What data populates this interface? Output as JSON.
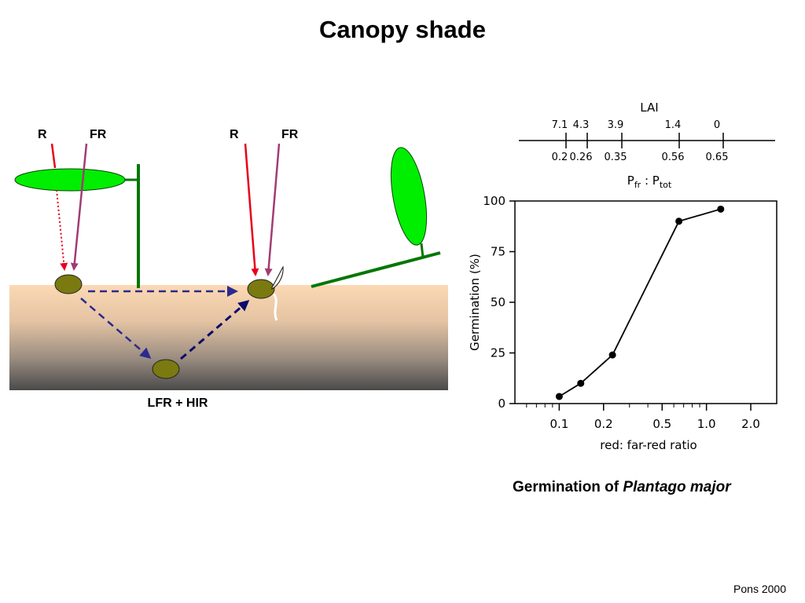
{
  "slide": {
    "title": "Canopy shade",
    "credit": "Pons 2000"
  },
  "diagram": {
    "left_labels": {
      "r": "R",
      "fr": "FR"
    },
    "right_labels": {
      "r": "R",
      "fr": "FR"
    },
    "bottom_label": "LFR + HIR",
    "colors": {
      "soil_top": "#fcd9b4",
      "soil_bottom": "#4a4a4a",
      "leaf": "#00ff00",
      "stem": "#007700",
      "seed": "#7a7a10",
      "red_light": "#e8001a",
      "far_red_light": "#a03c73",
      "arrow": "#2a2a90"
    }
  },
  "caption": {
    "prefix": "Germination of ",
    "species": "Plantago major"
  },
  "chart_data": {
    "type": "scatter",
    "xlabel": "red: far-red ratio",
    "ylabel": "Germination (%)",
    "xscale": "log",
    "xlim": [
      0.05,
      3.0
    ],
    "ylim": [
      0,
      100
    ],
    "xticks": [
      0.1,
      0.2,
      0.5,
      1.0,
      2.0
    ],
    "xtick_labels": [
      "0.1",
      "0.2",
      "0.5",
      "1.0",
      "2.0"
    ],
    "yticks": [
      0,
      25,
      50,
      75,
      100
    ],
    "series": [
      {
        "x": [
          0.1,
          0.14,
          0.23,
          0.65,
          1.25
        ],
        "y": [
          3.5,
          10,
          24,
          90,
          96
        ]
      }
    ],
    "top_scale": {
      "title": "LAI",
      "bottom_title": "Pfr : Ptot",
      "bottom_title_main1": "P",
      "bottom_title_sub1": "fr",
      "bottom_title_mid": " : P",
      "bottom_title_sub2": "tot",
      "lai_labels": [
        "7.1",
        "4.3",
        "3.9",
        "1.4",
        "0"
      ],
      "pfr_labels": [
        "0.2",
        "0.26",
        "0.35",
        "0.56",
        "0.65"
      ]
    },
    "colors": {
      "line": "#000000",
      "marker": "#000000"
    }
  }
}
